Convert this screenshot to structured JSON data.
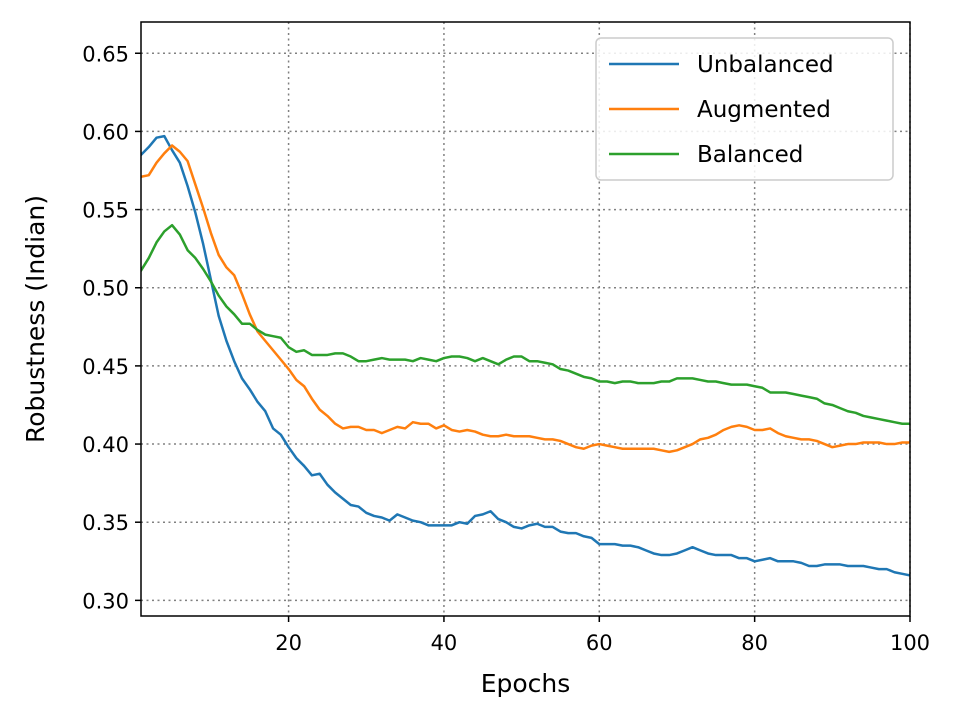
{
  "chart_data": {
    "type": "line",
    "xlabel": "Epochs",
    "ylabel": "Robustness (Indian)",
    "xlim": [
      1,
      100
    ],
    "ylim": [
      0.29,
      0.67
    ],
    "xticks": [
      20,
      40,
      60,
      80,
      100
    ],
    "xtick_labels": [
      "20",
      "40",
      "60",
      "80",
      "100"
    ],
    "yticks": [
      0.3,
      0.35,
      0.4,
      0.45,
      0.5,
      0.55,
      0.6,
      0.65
    ],
    "ytick_labels": [
      "0.30",
      "0.35",
      "0.40",
      "0.45",
      "0.50",
      "0.55",
      "0.60",
      "0.65"
    ],
    "grid": true,
    "legend_position": "top-right",
    "x": [
      1,
      2,
      3,
      4,
      5,
      6,
      7,
      8,
      9,
      10,
      11,
      12,
      13,
      14,
      15,
      16,
      17,
      18,
      19,
      20,
      21,
      22,
      23,
      24,
      25,
      26,
      27,
      28,
      29,
      30,
      31,
      32,
      33,
      34,
      35,
      36,
      37,
      38,
      39,
      40,
      41,
      42,
      43,
      44,
      45,
      46,
      47,
      48,
      49,
      50,
      51,
      52,
      53,
      54,
      55,
      56,
      57,
      58,
      59,
      60,
      61,
      62,
      63,
      64,
      65,
      66,
      67,
      68,
      69,
      70,
      71,
      72,
      73,
      74,
      75,
      76,
      77,
      78,
      79,
      80,
      81,
      82,
      83,
      84,
      85,
      86,
      87,
      88,
      89,
      90,
      91,
      92,
      93,
      94,
      95,
      96,
      97,
      98,
      99,
      100
    ],
    "series": [
      {
        "name": "Unbalanced",
        "color": "#1f77b4",
        "values": [
          0.585,
          0.59,
          0.596,
          0.597,
          0.588,
          0.58,
          0.565,
          0.548,
          0.528,
          0.505,
          0.482,
          0.466,
          0.453,
          0.442,
          0.435,
          0.427,
          0.421,
          0.41,
          0.406,
          0.398,
          0.391,
          0.386,
          0.38,
          0.381,
          0.374,
          0.369,
          0.365,
          0.361,
          0.36,
          0.356,
          0.354,
          0.353,
          0.351,
          0.355,
          0.353,
          0.351,
          0.35,
          0.348,
          0.348,
          0.348,
          0.348,
          0.35,
          0.349,
          0.354,
          0.355,
          0.357,
          0.352,
          0.35,
          0.347,
          0.346,
          0.348,
          0.349,
          0.347,
          0.347,
          0.344,
          0.343,
          0.343,
          0.341,
          0.34,
          0.336,
          0.336,
          0.336,
          0.335,
          0.335,
          0.334,
          0.332,
          0.33,
          0.329,
          0.329,
          0.33,
          0.332,
          0.334,
          0.332,
          0.33,
          0.329,
          0.329,
          0.329,
          0.327,
          0.327,
          0.325,
          0.326,
          0.327,
          0.325,
          0.325,
          0.325,
          0.324,
          0.322,
          0.322,
          0.323,
          0.323,
          0.323,
          0.322,
          0.322,
          0.322,
          0.321,
          0.32,
          0.32,
          0.318,
          0.317,
          0.316
        ]
      },
      {
        "name": "Augmented",
        "color": "#ff7f0e",
        "values": [
          0.571,
          0.572,
          0.58,
          0.586,
          0.591,
          0.587,
          0.581,
          0.566,
          0.551,
          0.535,
          0.521,
          0.513,
          0.508,
          0.496,
          0.483,
          0.472,
          0.466,
          0.46,
          0.454,
          0.448,
          0.441,
          0.437,
          0.429,
          0.422,
          0.418,
          0.413,
          0.41,
          0.411,
          0.411,
          0.409,
          0.409,
          0.407,
          0.409,
          0.411,
          0.41,
          0.414,
          0.413,
          0.413,
          0.41,
          0.412,
          0.409,
          0.408,
          0.409,
          0.408,
          0.406,
          0.405,
          0.405,
          0.406,
          0.405,
          0.405,
          0.405,
          0.404,
          0.403,
          0.403,
          0.402,
          0.4,
          0.398,
          0.397,
          0.399,
          0.4,
          0.399,
          0.398,
          0.397,
          0.397,
          0.397,
          0.397,
          0.397,
          0.396,
          0.395,
          0.396,
          0.398,
          0.4,
          0.403,
          0.404,
          0.406,
          0.409,
          0.411,
          0.412,
          0.411,
          0.409,
          0.409,
          0.41,
          0.407,
          0.405,
          0.404,
          0.403,
          0.403,
          0.402,
          0.4,
          0.398,
          0.399,
          0.4,
          0.4,
          0.401,
          0.401,
          0.401,
          0.4,
          0.4,
          0.401,
          0.401
        ]
      },
      {
        "name": "Balanced",
        "color": "#2ca02c",
        "values": [
          0.511,
          0.519,
          0.529,
          0.536,
          0.54,
          0.534,
          0.524,
          0.519,
          0.512,
          0.504,
          0.495,
          0.488,
          0.483,
          0.477,
          0.477,
          0.473,
          0.47,
          0.469,
          0.468,
          0.462,
          0.459,
          0.46,
          0.457,
          0.457,
          0.457,
          0.458,
          0.458,
          0.456,
          0.453,
          0.453,
          0.454,
          0.455,
          0.454,
          0.454,
          0.454,
          0.453,
          0.455,
          0.454,
          0.453,
          0.455,
          0.456,
          0.456,
          0.455,
          0.453,
          0.455,
          0.453,
          0.451,
          0.454,
          0.456,
          0.456,
          0.453,
          0.453,
          0.452,
          0.451,
          0.448,
          0.447,
          0.445,
          0.443,
          0.442,
          0.44,
          0.44,
          0.439,
          0.44,
          0.44,
          0.439,
          0.439,
          0.439,
          0.44,
          0.44,
          0.442,
          0.442,
          0.442,
          0.441,
          0.44,
          0.44,
          0.439,
          0.438,
          0.438,
          0.438,
          0.437,
          0.436,
          0.433,
          0.433,
          0.433,
          0.432,
          0.431,
          0.43,
          0.429,
          0.426,
          0.425,
          0.423,
          0.421,
          0.42,
          0.418,
          0.417,
          0.416,
          0.415,
          0.414,
          0.413,
          0.413
        ]
      }
    ]
  }
}
